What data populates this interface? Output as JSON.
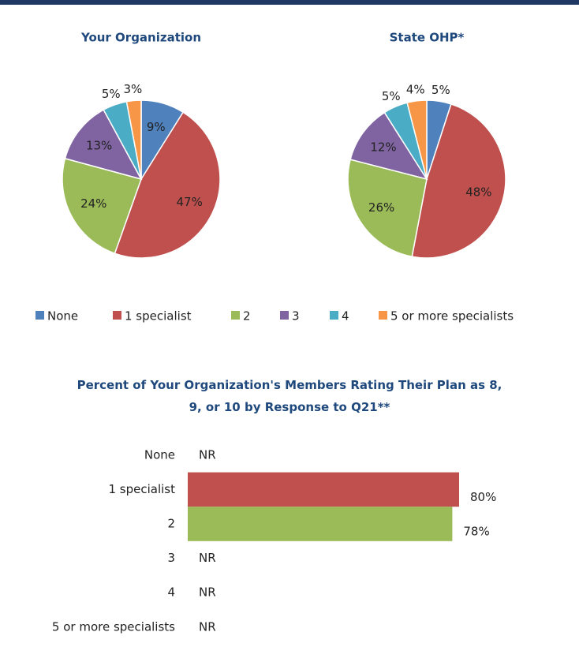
{
  "chart_data": [
    {
      "type": "pie",
      "title": "Your Organization",
      "categories": [
        "None",
        "1 specialist",
        "2",
        "3",
        "4",
        "5 or more specialists"
      ],
      "values": [
        9,
        47,
        24,
        13,
        5,
        3
      ],
      "value_labels": [
        "9%",
        "47%",
        "24%",
        "13%",
        "5%",
        "3%"
      ],
      "colors": [
        "#4f81bd",
        "#c0504d",
        "#9bbb59",
        "#8064a2",
        "#4bacc6",
        "#f79646"
      ],
      "legend": "bottom"
    },
    {
      "type": "pie",
      "title": "State OHP*",
      "categories": [
        "None",
        "1 specialist",
        "2",
        "3",
        "4",
        "5 or more specialists"
      ],
      "values": [
        5,
        48,
        26,
        12,
        5,
        4
      ],
      "value_labels": [
        "5%",
        "48%",
        "26%",
        "12%",
        "5%",
        "4%"
      ],
      "colors": [
        "#4f81bd",
        "#c0504d",
        "#9bbb59",
        "#8064a2",
        "#4bacc6",
        "#f79646"
      ]
    },
    {
      "type": "hbar",
      "title": "Percent of Your Organization's Members Rating Their Plan as 8, 9, or 10 by Response to Q21**",
      "categories": [
        "None",
        "1 specialist",
        "2",
        "3",
        "4",
        "5 or more specialists"
      ],
      "values": [
        null,
        80,
        78,
        null,
        null,
        null
      ],
      "value_labels": [
        "NR",
        "80%",
        "78%",
        "NR",
        "NR",
        "NR"
      ],
      "colors": [
        "#4f81bd",
        "#c0504d",
        "#9bbb59",
        "#8064a2",
        "#4bacc6",
        "#f79646"
      ],
      "xlim": [
        0,
        100
      ]
    }
  ]
}
